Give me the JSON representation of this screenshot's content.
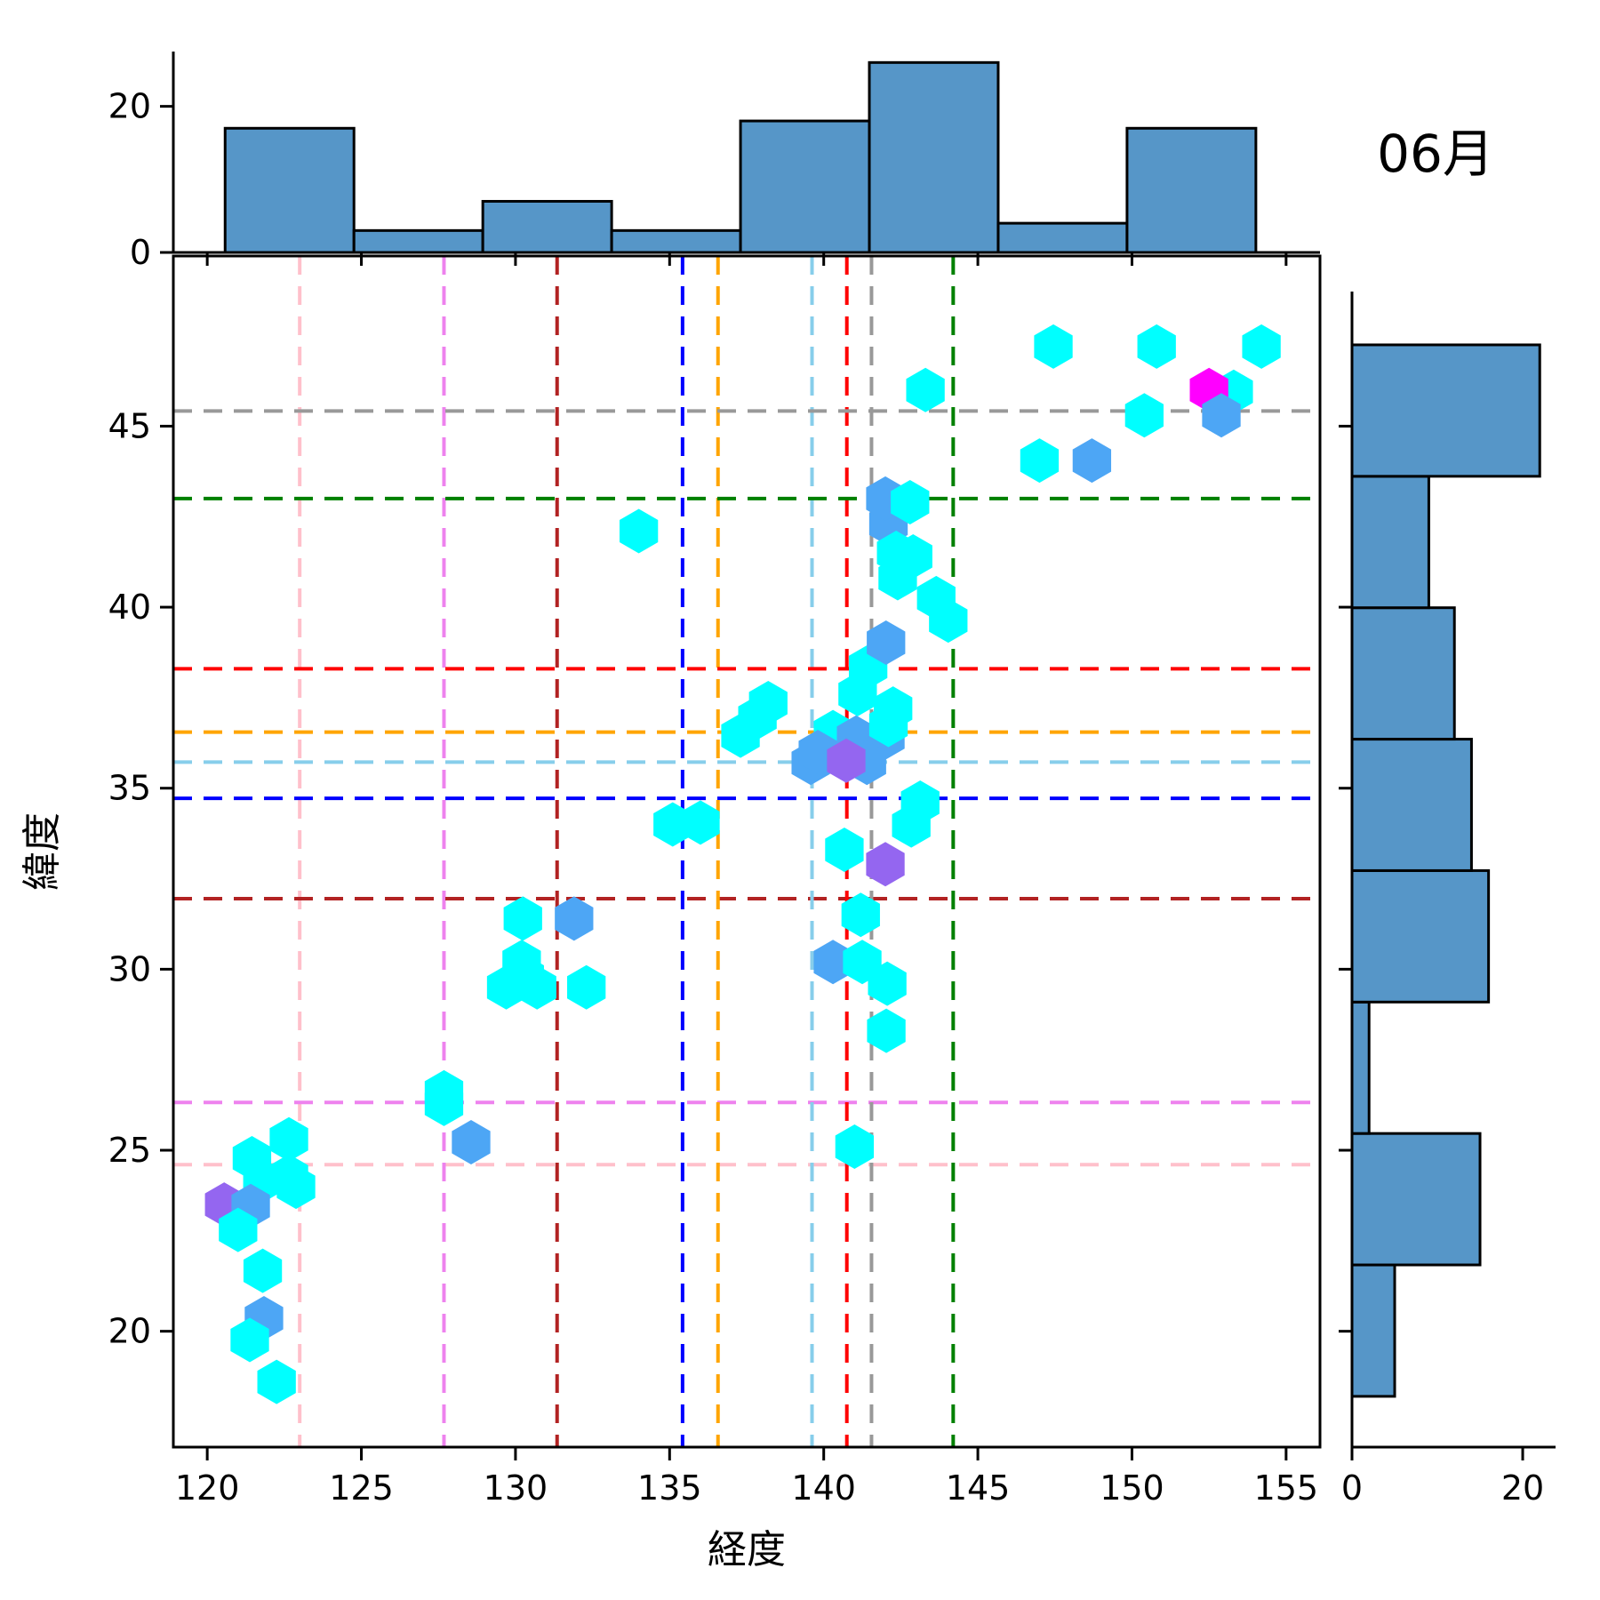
{
  "title": "06月",
  "colors": {
    "cyan": "#00ffff",
    "blue": "#4da6f5",
    "purple": "#9466f0",
    "magenta": "#ff00ff",
    "hist_fill": "#5696c8",
    "hist_edge": "#000000",
    "spine": "#000000"
  },
  "chart_data": {
    "type": "scatter",
    "title": "06月",
    "xlabel": "経度",
    "ylabel": "緯度",
    "marker": "hexagon",
    "grid": false,
    "xlim": [
      118.9,
      156.1
    ],
    "ylim": [
      16.8,
      49.7
    ],
    "x_ticks": [
      120,
      125,
      130,
      135,
      140,
      145,
      150,
      155
    ],
    "y_ticks": [
      20,
      25,
      30,
      35,
      40,
      45
    ],
    "points": [
      {
        "x": 122.65,
        "y": 25.3,
        "c": "cyan"
      },
      {
        "x": 121.45,
        "y": 24.78,
        "c": "cyan"
      },
      {
        "x": 121.79,
        "y": 24.16,
        "c": "cyan"
      },
      {
        "x": 122.65,
        "y": 24.28,
        "c": "cyan"
      },
      {
        "x": 122.88,
        "y": 23.99,
        "c": "cyan"
      },
      {
        "x": 120.55,
        "y": 23.5,
        "c": "purple"
      },
      {
        "x": 121.41,
        "y": 23.46,
        "c": "blue"
      },
      {
        "x": 121.0,
        "y": 22.8,
        "c": "cyan"
      },
      {
        "x": 121.8,
        "y": 21.67,
        "c": "cyan"
      },
      {
        "x": 121.84,
        "y": 20.36,
        "c": "blue"
      },
      {
        "x": 121.38,
        "y": 19.76,
        "c": "cyan"
      },
      {
        "x": 122.25,
        "y": 18.6,
        "c": "cyan"
      },
      {
        "x": 127.68,
        "y": 26.6,
        "c": "cyan"
      },
      {
        "x": 127.68,
        "y": 26.28,
        "c": "cyan"
      },
      {
        "x": 128.56,
        "y": 25.22,
        "c": "blue"
      },
      {
        "x": 130.24,
        "y": 31.4,
        "c": "cyan"
      },
      {
        "x": 131.9,
        "y": 31.4,
        "c": "blue"
      },
      {
        "x": 130.2,
        "y": 30.2,
        "c": "cyan"
      },
      {
        "x": 130.3,
        "y": 29.8,
        "c": "cyan"
      },
      {
        "x": 129.7,
        "y": 29.5,
        "c": "cyan"
      },
      {
        "x": 130.7,
        "y": 29.5,
        "c": "cyan"
      },
      {
        "x": 132.3,
        "y": 29.5,
        "c": "cyan"
      },
      {
        "x": 141.0,
        "y": 25.1,
        "c": "cyan"
      },
      {
        "x": 135.1,
        "y": 34.0,
        "c": "cyan"
      },
      {
        "x": 136.0,
        "y": 34.05,
        "c": "cyan"
      },
      {
        "x": 134.0,
        "y": 42.1,
        "c": "cyan"
      },
      {
        "x": 140.67,
        "y": 33.3,
        "c": "cyan"
      },
      {
        "x": 142.0,
        "y": 32.9,
        "c": "purple"
      },
      {
        "x": 142.84,
        "y": 33.97,
        "c": "cyan"
      },
      {
        "x": 143.13,
        "y": 34.6,
        "c": "cyan"
      },
      {
        "x": 141.2,
        "y": 31.5,
        "c": "cyan"
      },
      {
        "x": 140.3,
        "y": 30.2,
        "c": "blue"
      },
      {
        "x": 141.25,
        "y": 30.2,
        "c": "cyan"
      },
      {
        "x": 142.06,
        "y": 29.6,
        "c": "cyan"
      },
      {
        "x": 142.03,
        "y": 28.3,
        "c": "cyan"
      },
      {
        "x": 137.3,
        "y": 36.45,
        "c": "cyan"
      },
      {
        "x": 137.85,
        "y": 36.95,
        "c": "cyan"
      },
      {
        "x": 138.2,
        "y": 37.35,
        "c": "cyan"
      },
      {
        "x": 140.3,
        "y": 36.55,
        "c": "cyan"
      },
      {
        "x": 141.05,
        "y": 36.4,
        "c": "blue"
      },
      {
        "x": 142.0,
        "y": 36.4,
        "c": "blue"
      },
      {
        "x": 139.58,
        "y": 35.7,
        "c": "blue"
      },
      {
        "x": 139.81,
        "y": 36.0,
        "c": "blue"
      },
      {
        "x": 141.4,
        "y": 35.7,
        "c": "blue"
      },
      {
        "x": 140.73,
        "y": 35.76,
        "c": "purple"
      },
      {
        "x": 141.1,
        "y": 37.6,
        "c": "cyan"
      },
      {
        "x": 142.25,
        "y": 37.2,
        "c": "cyan"
      },
      {
        "x": 142.1,
        "y": 36.75,
        "c": "cyan"
      },
      {
        "x": 141.44,
        "y": 38.35,
        "c": "cyan"
      },
      {
        "x": 142.02,
        "y": 39.02,
        "c": "blue"
      },
      {
        "x": 143.65,
        "y": 40.25,
        "c": "cyan"
      },
      {
        "x": 144.04,
        "y": 39.63,
        "c": "cyan"
      },
      {
        "x": 142.4,
        "y": 40.8,
        "c": "cyan"
      },
      {
        "x": 142.1,
        "y": 42.3,
        "c": "blue"
      },
      {
        "x": 142.35,
        "y": 41.5,
        "c": "cyan"
      },
      {
        "x": 142.9,
        "y": 41.4,
        "c": "cyan"
      },
      {
        "x": 142.0,
        "y": 43.0,
        "c": "blue"
      },
      {
        "x": 142.8,
        "y": 42.9,
        "c": "cyan"
      },
      {
        "x": 143.3,
        "y": 46.0,
        "c": "cyan"
      },
      {
        "x": 147.45,
        "y": 47.2,
        "c": "cyan"
      },
      {
        "x": 150.8,
        "y": 47.2,
        "c": "cyan"
      },
      {
        "x": 154.2,
        "y": 47.2,
        "c": "cyan"
      },
      {
        "x": 153.3,
        "y": 45.95,
        "c": "cyan"
      },
      {
        "x": 152.5,
        "y": 46.0,
        "c": "magenta"
      },
      {
        "x": 152.9,
        "y": 45.3,
        "c": "blue"
      },
      {
        "x": 150.4,
        "y": 45.3,
        "c": "cyan"
      },
      {
        "x": 147.0,
        "y": 44.05,
        "c": "cyan"
      },
      {
        "x": 148.7,
        "y": 44.05,
        "c": "blue"
      }
    ],
    "reference_lines": [
      {
        "name": "pink",
        "color": "#ffc0cb",
        "x": 123.0,
        "y": 24.6
      },
      {
        "name": "violet",
        "color": "#ee82ee",
        "x": 127.68,
        "y": 26.32
      },
      {
        "name": "darkred",
        "color": "#b22222",
        "x": 131.35,
        "y": 31.95
      },
      {
        "name": "blue",
        "color": "#0000ff",
        "x": 135.42,
        "y": 34.72
      },
      {
        "name": "orange",
        "color": "#ffa500",
        "x": 136.57,
        "y": 36.55
      },
      {
        "name": "skyblue",
        "color": "#87ceeb",
        "x": 139.62,
        "y": 35.72
      },
      {
        "name": "red",
        "color": "#ff0000",
        "x": 140.75,
        "y": 38.3
      },
      {
        "name": "gray",
        "color": "#999999",
        "x": 141.55,
        "y": 45.42
      },
      {
        "name": "green",
        "color": "#008000",
        "x": 144.2,
        "y": 43.0
      }
    ],
    "top_histogram": {
      "orientation": "vertical",
      "bin_start": 120.58,
      "bin_width": 4.18,
      "counts": [
        17,
        3,
        7,
        3,
        18,
        26,
        4,
        17
      ],
      "value_ticks": [
        0,
        20
      ],
      "value_lim": [
        0,
        27.5
      ]
    },
    "right_histogram": {
      "orientation": "horizontal",
      "bin_start": 18.21,
      "bin_width": 3.625,
      "counts_bottom_to_top": [
        5,
        15,
        2,
        16,
        14,
        12,
        9,
        22
      ],
      "value_ticks": [
        0,
        20
      ],
      "value_lim": [
        0,
        23.85
      ],
      "ylim": [
        16.81,
        48.68
      ]
    }
  }
}
